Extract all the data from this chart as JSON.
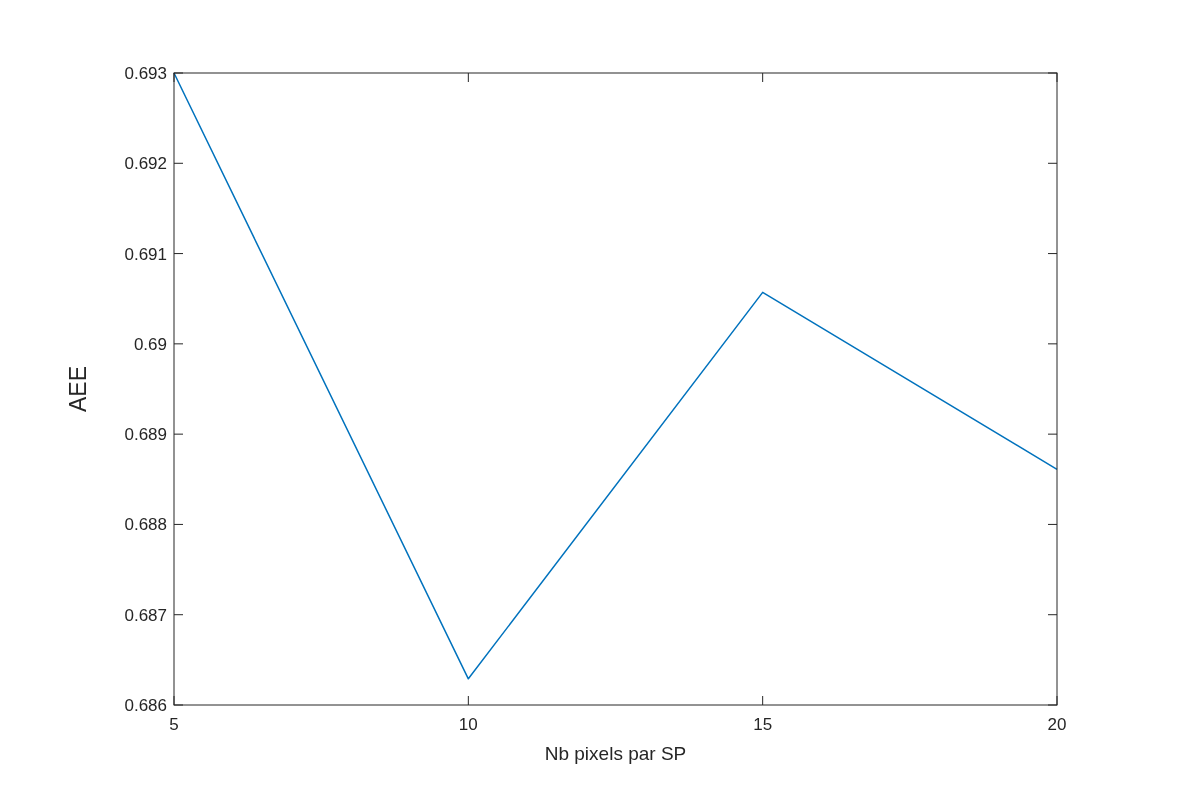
{
  "chart_data": {
    "type": "line",
    "xlabel": "Nb pixels par SP",
    "ylabel": "AEE",
    "x": [
      5,
      10,
      15,
      20
    ],
    "series": [
      {
        "color": "#0072bd",
        "values": [
          0.693,
          0.68629,
          0.69057,
          0.68861
        ]
      }
    ],
    "xlim": [
      5,
      20
    ],
    "ylim": [
      0.686,
      0.693
    ],
    "xticks": [
      5,
      10,
      15,
      20
    ],
    "yticks": [
      0.686,
      0.687,
      0.688,
      0.689,
      0.69,
      0.691,
      0.692,
      0.693
    ],
    "grid": false,
    "marker": "none",
    "line_style": "solid"
  }
}
